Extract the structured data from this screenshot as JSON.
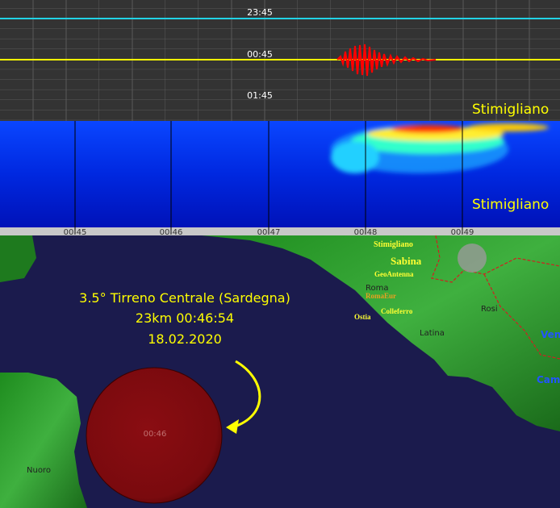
{
  "helicorder": {
    "time_labels": [
      "23:45",
      "00:45",
      "01:45"
    ],
    "station": "Stimigliano"
  },
  "spectrogram": {
    "station": "Stimigliano",
    "time_labels": [
      "00:45",
      "00:46",
      "00:47",
      "00:48",
      "00:49"
    ]
  },
  "map": {
    "places": [
      "Stimigliano",
      "Sabina",
      "GeoAntenna",
      "Roma",
      "RomaEur",
      "Colleferro",
      "Ostia",
      "Latina",
      "Rosi",
      "Ven",
      "Cam",
      "Nuoro"
    ],
    "event": {
      "title": "3.5° Tirreno Centrale (Sardegna)",
      "depth_time": "23km 00:46:54",
      "date": "18.02.2020",
      "marker_label": "00:46"
    }
  }
}
